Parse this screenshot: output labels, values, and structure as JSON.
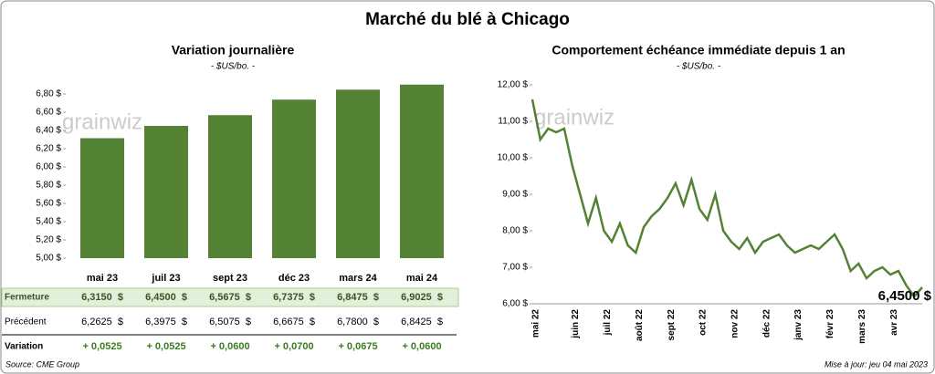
{
  "title": "Marché du blé à Chicago",
  "watermark": "grainwiz",
  "source": "Source: CME Group",
  "updated": "Mise à jour: jeu 04 mai 2023",
  "chart_data": [
    {
      "type": "bar",
      "title": "Variation journalière",
      "subtitle": "- $US/bo. -",
      "categories": [
        "mai 23",
        "juil 23",
        "sept 23",
        "déc 23",
        "mars 24",
        "mai 24"
      ],
      "values": [
        6.315,
        6.45,
        6.5675,
        6.7375,
        6.8475,
        6.9025
      ],
      "value_labels": [
        "6,3150  $",
        "6,4500  $",
        "6,5675  $",
        "6,7375  $",
        "6,8475  $",
        "6,9025  $"
      ],
      "color": "#548235",
      "ylim": [
        5,
        7
      ],
      "yticks": [
        {
          "value": 5,
          "label": "5,00 $"
        },
        {
          "value": 5.2,
          "label": "5,20 $"
        },
        {
          "value": 5.4,
          "label": "5,40 $"
        },
        {
          "value": 5.6,
          "label": "5,60 $"
        },
        {
          "value": 5.8,
          "label": "5,80 $"
        },
        {
          "value": 6,
          "label": "6,00 $"
        },
        {
          "value": 6.2,
          "label": "6,20 $"
        },
        {
          "value": 6.4,
          "label": "6,40 $"
        },
        {
          "value": 6.6,
          "label": "6,60 $"
        },
        {
          "value": 6.8,
          "label": "6,80 $"
        }
      ]
    },
    {
      "type": "line",
      "title": "Comportement  échéance immédiate depuis 1 an",
      "subtitle": "- $US/bo. -",
      "categories": [
        "mai 22",
        null,
        null,
        null,
        null,
        "juin 22",
        null,
        null,
        null,
        "juil 22",
        null,
        null,
        null,
        "août 22",
        null,
        null,
        null,
        "sept 22",
        null,
        null,
        null,
        "oct 22",
        null,
        null,
        null,
        "nov 22",
        null,
        null,
        null,
        "déc 22",
        null,
        null,
        null,
        "janv 23",
        null,
        null,
        null,
        "févr 23",
        null,
        null,
        null,
        "mars 23",
        null,
        null,
        null,
        "avr 23",
        null,
        null,
        null,
        null
      ],
      "series": [
        {
          "name": "Échéance immédiate",
          "color": "#548235",
          "values": [
            11.6,
            10.5,
            10.8,
            10.7,
            10.8,
            9.8,
            9.0,
            8.2,
            8.9,
            8.0,
            7.7,
            8.2,
            7.6,
            7.4,
            8.1,
            8.4,
            8.6,
            8.9,
            9.3,
            8.7,
            9.4,
            8.6,
            8.3,
            9.0,
            8.0,
            7.7,
            7.5,
            7.8,
            7.4,
            7.7,
            7.8,
            7.9,
            7.6,
            7.4,
            7.5,
            7.6,
            7.5,
            7.7,
            7.9,
            7.5,
            6.9,
            7.1,
            6.7,
            6.9,
            7.0,
            6.8,
            6.9,
            6.5,
            6.2,
            6.45
          ]
        }
      ],
      "annotation": "6,4500 $",
      "ylim": [
        6,
        12
      ],
      "yticks": [
        {
          "value": 6,
          "label": "6,00 $"
        },
        {
          "value": 7,
          "label": "7,00 $"
        },
        {
          "value": 8,
          "label": "8,00 $"
        },
        {
          "value": 9,
          "label": "9,00 $"
        },
        {
          "value": 10,
          "label": "10,00 $"
        },
        {
          "value": 11,
          "label": "11,00 $"
        },
        {
          "value": 12,
          "label": "12,00 $"
        }
      ]
    }
  ],
  "table": {
    "rows": [
      {
        "label": "Fermeture"
      },
      {
        "label": "Précédent",
        "cells": [
          "6,2625  $",
          "6,3975  $",
          "6,5075  $",
          "6,6675  $",
          "6,7800  $",
          "6,8425  $"
        ]
      },
      {
        "label": "Variation",
        "cells": [
          "+ 0,0525",
          "+ 0,0525",
          "+ 0,0600",
          "+ 0,0700",
          "+ 0,0675",
          "+ 0,0600"
        ]
      }
    ]
  }
}
